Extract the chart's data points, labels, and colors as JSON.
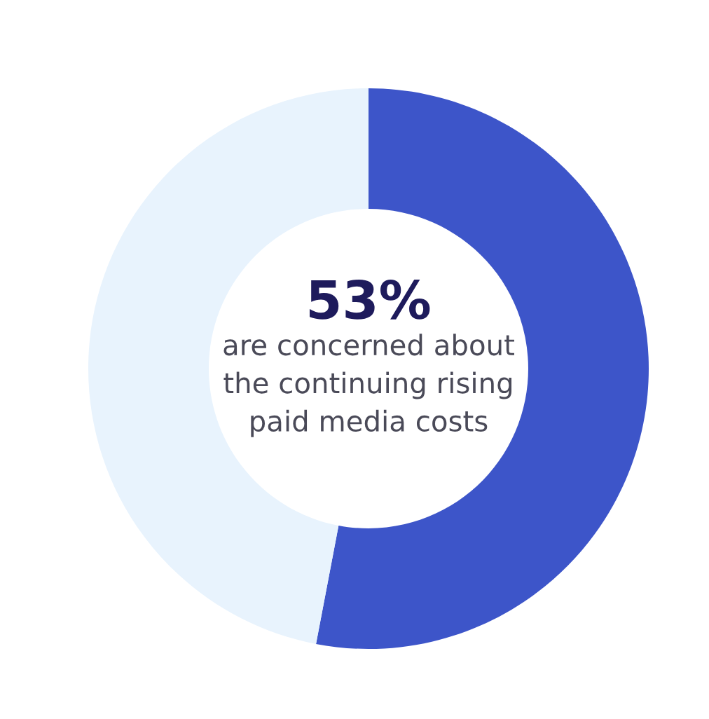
{
  "chart_data": {
    "type": "donut",
    "categories": [
      null,
      null
    ],
    "values": [
      53,
      47
    ],
    "colors": [
      "#3d55c9",
      "#e8f3fd"
    ],
    "annotations": [
      "53%",
      "are concerned about\nthe continuing rising\npaid media costs"
    ]
  }
}
